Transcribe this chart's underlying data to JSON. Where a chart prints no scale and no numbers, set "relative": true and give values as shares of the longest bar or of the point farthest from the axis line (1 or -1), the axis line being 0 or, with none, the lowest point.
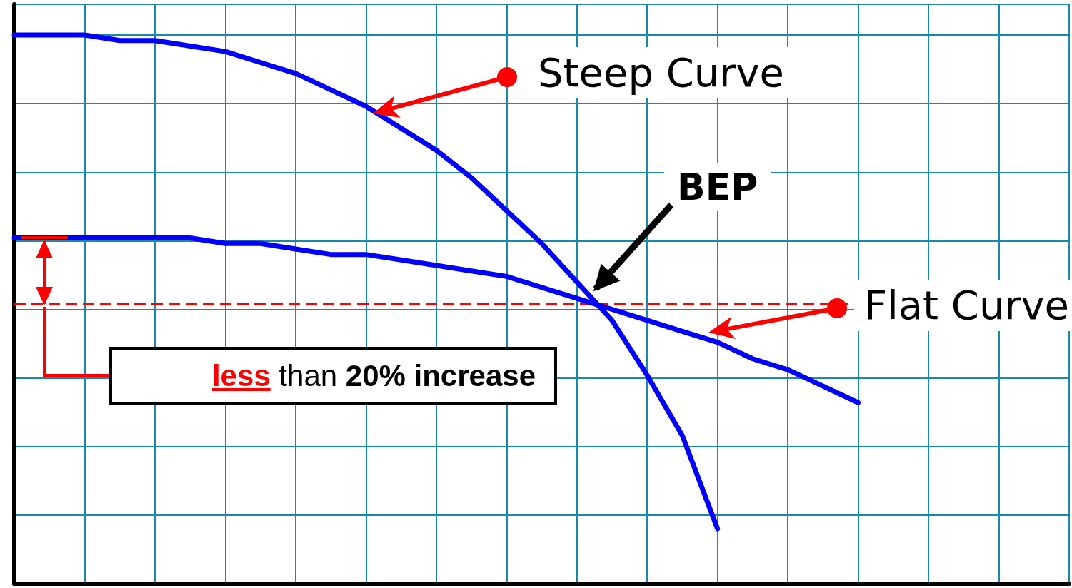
{
  "chart_data": {
    "type": "line",
    "relative": true,
    "grid": true,
    "marker": "none",
    "line_style": "solid",
    "categories": [
      null,
      null,
      null,
      null,
      null,
      null,
      null,
      null,
      null,
      null,
      null,
      null,
      null,
      null,
      null,
      null,
      null,
      null,
      null,
      null,
      null,
      null,
      null,
      null,
      null
    ],
    "series": [
      {
        "name": "Steep Curve",
        "color": "#0000ff",
        "values": [
          1,
          1,
          1,
          0.99,
          0.99,
          0.98,
          0.97,
          0.95,
          0.93,
          0.9,
          0.87,
          0.83,
          0.79,
          0.74,
          0.68,
          0.62,
          0.55,
          0.48,
          0.38,
          0.27,
          0.1,
          null,
          null,
          null,
          null
        ]
      },
      {
        "name": "Flat Curve",
        "color": "#0000ff",
        "values": [
          0.63,
          0.63,
          0.63,
          0.63,
          0.63,
          0.63,
          0.62,
          0.62,
          0.61,
          0.6,
          0.6,
          0.59,
          0.58,
          0.57,
          0.56,
          0.54,
          0.52,
          0.5,
          0.48,
          0.46,
          0.44,
          0.41,
          0.39,
          0.36,
          0.33
        ]
      }
    ],
    "ref_lines": [
      {
        "axis": "y",
        "value": 0.51,
        "color": "#ff0000",
        "line_style": "dashed"
      }
    ],
    "annotations": [
      "BEP",
      "less than 20% increase"
    ]
  }
}
